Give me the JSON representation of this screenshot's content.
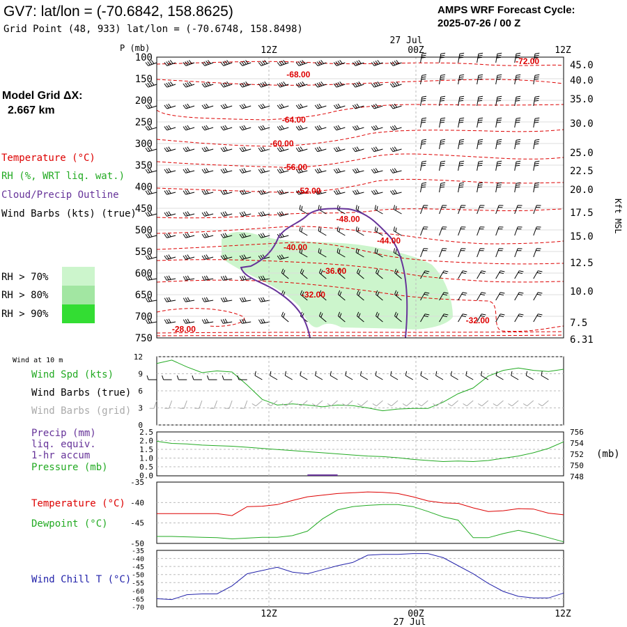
{
  "header": {
    "title": "GV7:  lat/lon = (-70.6842, 158.8625)",
    "subtitle": "Grid Point (48, 933) lat/lon = (-70.6748, 158.8498)",
    "cycle_line1": "AMPS WRF Forecast Cycle:",
    "cycle_line2": "2025-07-26 / 00  Z",
    "model_grid_line1": "Model Grid ΔX:",
    "model_grid_line2": "2.667 km"
  },
  "time_axis": {
    "top_date": "27 Jul",
    "bottom_date": "27 Jul",
    "ticks": [
      "12Z",
      "00Z",
      "12Z"
    ]
  },
  "colors": {
    "temperature": "#dd0000",
    "rh": "#22aa22",
    "cloud": "#663399",
    "wind_chill": "#2222aa",
    "gridline": "#bbbbbb",
    "wind_grid": "#aaaaaa",
    "rh70": "#ccf5cc",
    "rh80": "#a2e6a2",
    "rh90": "#33dd33"
  },
  "legend": {
    "temperature": "Temperature (°C)",
    "rh": "RH (%, WRT liq. wat.)",
    "cloud": "Cloud/Precip Outline",
    "wind": "Wind Barbs (kts) (true)",
    "rh70": "RH > 70%",
    "rh80": "RH > 80%",
    "rh90": "RH > 90%"
  },
  "panel_labels": {
    "wind10m": "Wind at 10 m",
    "wind_spd": "Wind Spd (kts)",
    "wind_barbs_true": "Wind Barbs (true)",
    "wind_barbs_grid": "Wind Barbs (grid)",
    "precip1": "Precip (mm)",
    "precip2": "liq. equiv.",
    "precip3": "1-hr accum",
    "pressure": "Pressure (mb)",
    "pressure_unit": "(mb)",
    "temperature": "Temperature (°C)",
    "dewpoint": "Dewpoint (°C)",
    "wind_chill": "Wind Chill T (°C)"
  },
  "chart_data": [
    {
      "type": "contour",
      "name": "upper-air-cross-section",
      "ylabel": "P (mb)",
      "right_label": "Kft MSL",
      "pressure_levels": [
        100,
        150,
        200,
        250,
        300,
        350,
        400,
        450,
        500,
        550,
        600,
        650,
        700,
        750
      ],
      "height_ticks_kft": [
        "45.0",
        "40.0",
        "35.0",
        "30.0",
        "25.0",
        "22.5",
        "20.0",
        "17.5",
        "15.0",
        "12.5",
        "10.0",
        "7.5",
        "6.31"
      ],
      "temperature_contour_labels": [
        {
          "label": "-72.00",
          "hour": 24.6,
          "p": 110
        },
        {
          "label": "-68.00",
          "hour": 9.4,
          "p": 140
        },
        {
          "label": "-64.00",
          "hour": 9.1,
          "p": 245
        },
        {
          "label": "-60.00",
          "hour": 8.3,
          "p": 300
        },
        {
          "label": "-56.00",
          "hour": 9.2,
          "p": 355
        },
        {
          "label": "-52.00",
          "hour": 10.1,
          "p": 410
        },
        {
          "label": "-48.00",
          "hour": 12.7,
          "p": 475
        },
        {
          "label": "-44.00",
          "hour": 15.4,
          "p": 525
        },
        {
          "label": "-40.00",
          "hour": 9.2,
          "p": 540
        },
        {
          "label": "-36.00",
          "hour": 11.8,
          "p": 595
        },
        {
          "label": "-32.00",
          "hour": 10.4,
          "p": 650
        },
        {
          "label": "-32.00",
          "hour": 21.3,
          "p": 710
        },
        {
          "label": "-28.00",
          "hour": 1.8,
          "p": 730
        }
      ],
      "wind_barb_hours": [
        0,
        2,
        4,
        6,
        8,
        10,
        12,
        14,
        16,
        18,
        20,
        22,
        24,
        26
      ]
    },
    {
      "type": "line",
      "name": "wind-speed-10m",
      "ylabel": "Wind Spd (kts)",
      "yticks": [
        0,
        3,
        6,
        9,
        12
      ],
      "ylim": [
        0,
        12
      ],
      "x_hours": [
        0,
        1,
        2,
        3,
        4,
        5,
        6,
        7,
        8,
        9,
        10,
        11,
        12,
        13,
        14,
        15,
        16,
        17,
        18,
        19,
        20,
        21,
        22,
        23,
        24,
        25,
        26,
        27
      ],
      "values": [
        10.8,
        11.4,
        10.2,
        9.2,
        9.5,
        9.3,
        7.0,
        4.5,
        3.5,
        3.7,
        3.5,
        3.2,
        3.5,
        3.4,
        3.0,
        2.5,
        2.8,
        2.9,
        2.9,
        4.0,
        5.5,
        6.5,
        8.6,
        9.6,
        10.0,
        9.6,
        9.4,
        9.8
      ],
      "barb_dirs_true": [
        "W",
        "W",
        "W",
        "W",
        "W",
        "W",
        "W",
        "W",
        "NW",
        "NW",
        "NW",
        "NW",
        "NW",
        "NW",
        "NW",
        "NW",
        "NW",
        "NW",
        "NW",
        "NW",
        "NW",
        "NW",
        "NW",
        "NW",
        "NW",
        "NW",
        "NW",
        "NW"
      ]
    },
    {
      "type": "line",
      "name": "precip-pressure",
      "ylabel": "Precip (mm) / Pressure (mb)",
      "precip_yticks": [
        "2.5",
        "2.0",
        "1.5",
        "1.0",
        "0.5",
        "0.0"
      ],
      "pressure_yticks": [
        "756",
        "754",
        "752",
        "750",
        "748"
      ],
      "x_hours": [
        0,
        1,
        2,
        3,
        4,
        5,
        6,
        7,
        8,
        9,
        10,
        11,
        12,
        13,
        14,
        15,
        16,
        17,
        18,
        19,
        20,
        21,
        22,
        23,
        24,
        25,
        26,
        27
      ],
      "pressure": [
        754.3,
        753.9,
        753.8,
        753.6,
        753.5,
        753.4,
        753.2,
        753.0,
        752.8,
        752.6,
        752.4,
        752.2,
        752.0,
        751.8,
        751.6,
        751.5,
        751.3,
        751.0,
        750.8,
        750.6,
        750.7,
        750.6,
        750.8,
        751.2,
        751.6,
        752.2,
        753.0,
        754.2
      ],
      "precip_hours": [
        10,
        11,
        12
      ],
      "precip_values": [
        0.02,
        0.02,
        0.02
      ]
    },
    {
      "type": "line",
      "name": "temperature-dewpoint",
      "yticks": [
        -35,
        -40,
        -45,
        -50
      ],
      "ylim": [
        -50,
        -35
      ],
      "x_hours": [
        0,
        1,
        2,
        3,
        4,
        5,
        6,
        7,
        8,
        9,
        10,
        11,
        12,
        13,
        14,
        15,
        16,
        17,
        18,
        19,
        20,
        21,
        22,
        23,
        24,
        25,
        26,
        27
      ],
      "series": [
        {
          "name": "Temperature (°C)",
          "values": [
            -42.7,
            -42.7,
            -42.7,
            -42.7,
            -42.7,
            -43.2,
            -41.0,
            -40.9,
            -40.5,
            -39.5,
            -38.6,
            -38.2,
            -37.8,
            -37.6,
            -37.4,
            -37.5,
            -37.8,
            -38.6,
            -39.6,
            -40.1,
            -40.2,
            -41.3,
            -42.2,
            -42.0,
            -41.5,
            -41.6,
            -42.6,
            -43.0
          ]
        },
        {
          "name": "Dewpoint (°C)",
          "values": [
            -48.3,
            -48.3,
            -48.4,
            -48.5,
            -48.6,
            -48.9,
            -48.7,
            -48.5,
            -48.5,
            -48.1,
            -47.0,
            -44.0,
            -41.8,
            -41.0,
            -40.7,
            -40.5,
            -40.5,
            -41.0,
            -42.2,
            -43.5,
            -44.3,
            -48.6,
            -48.6,
            -47.6,
            -46.8,
            -47.6,
            -48.6,
            -49.6
          ]
        }
      ]
    },
    {
      "type": "line",
      "name": "wind-chill",
      "yticks": [
        -35,
        -40,
        -45,
        -50,
        -55,
        -60,
        -65,
        -70
      ],
      "ylim": [
        -70,
        -35
      ],
      "x_hours": [
        0,
        1,
        2,
        3,
        4,
        5,
        6,
        7,
        8,
        9,
        10,
        11,
        12,
        13,
        14,
        15,
        16,
        17,
        18,
        19,
        20,
        21,
        22,
        23,
        24,
        25,
        26,
        27
      ],
      "series": [
        {
          "name": "Wind Chill T (°C)",
          "values": [
            -65.0,
            -65.5,
            -62.5,
            -62.0,
            -62.0,
            -57.0,
            -49.5,
            -47.5,
            -45.5,
            -48.5,
            -49.5,
            -47.0,
            -44.5,
            -42.5,
            -38.0,
            -37.5,
            -37.5,
            -37.0,
            -37.0,
            -39.5,
            -44.5,
            -49.5,
            -55.5,
            -60.5,
            -63.5,
            -64.5,
            -64.5,
            -61.5
          ]
        }
      ]
    }
  ]
}
